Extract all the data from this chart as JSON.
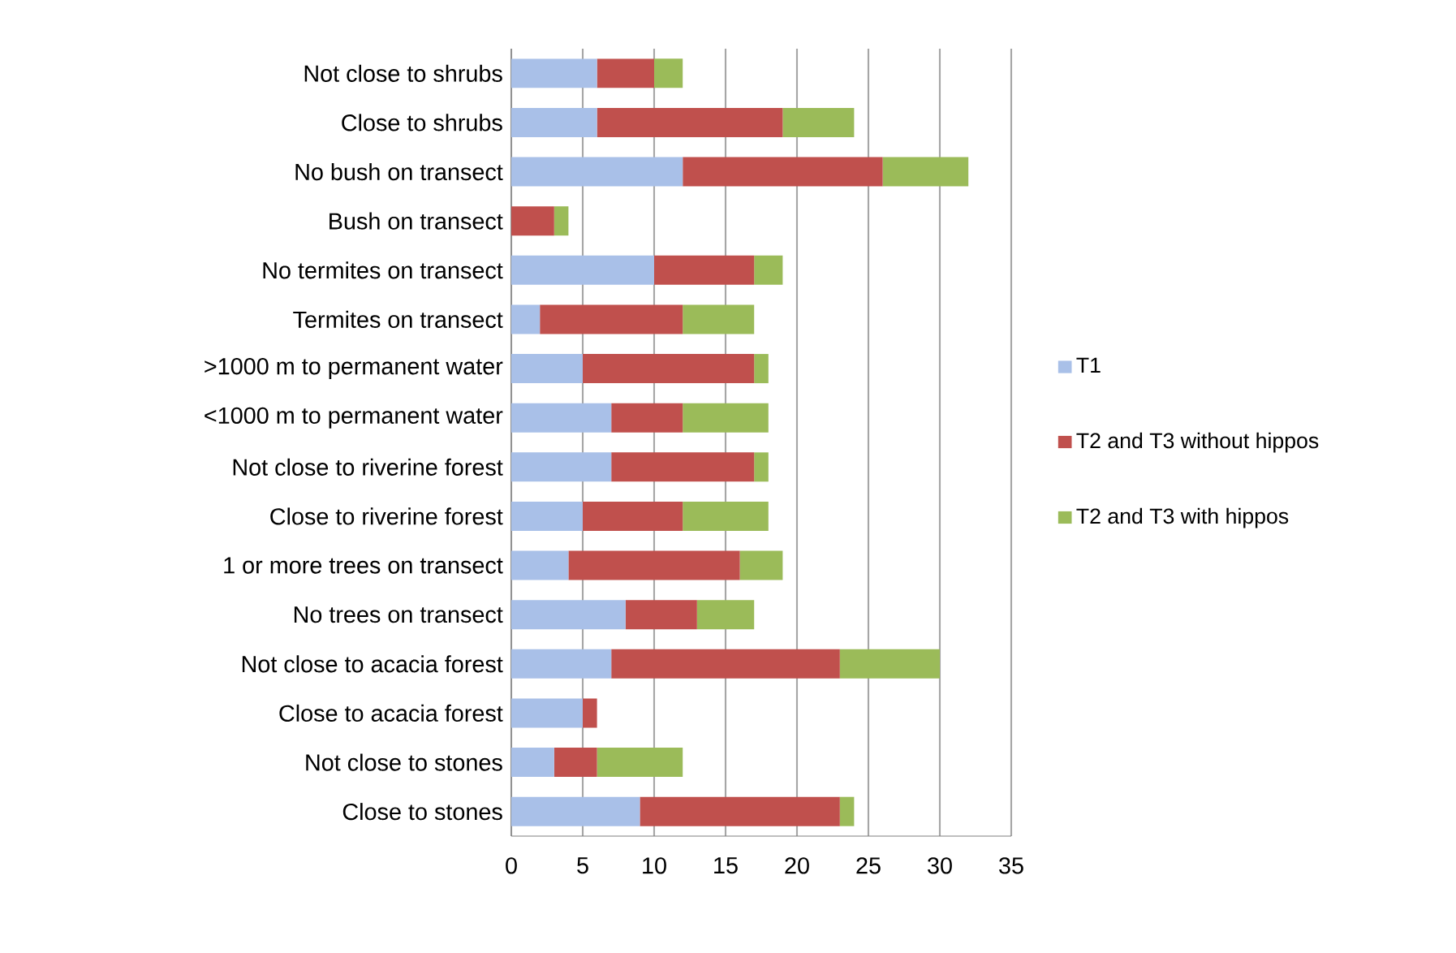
{
  "chart_data": {
    "type": "bar",
    "orientation": "horizontal",
    "stacked": true,
    "categories": [
      "Not close to shrubs",
      "Close to shrubs",
      "No bush on transect",
      "Bush on transect",
      "No termites on transect",
      "Termites on transect",
      ">1000 m to permanent water",
      "<1000 m to permanent water",
      "Not close to riverine forest",
      "Close to riverine forest",
      "1 or more trees on transect",
      "No trees on transect",
      "Not close to acacia forest",
      "Close to acacia forest",
      "Not close to stones",
      "Close to stones"
    ],
    "series": [
      {
        "name": "T1",
        "color": "#a9c0e8",
        "values": [
          6,
          6,
          12,
          0,
          10,
          2,
          5,
          7,
          7,
          5,
          4,
          8,
          7,
          5,
          3,
          9
        ]
      },
      {
        "name": "T2 and T3 without hippos",
        "color": "#c0504d",
        "values": [
          4,
          13,
          14,
          3,
          7,
          10,
          12,
          5,
          10,
          7,
          12,
          5,
          16,
          1,
          3,
          14
        ]
      },
      {
        "name": "T2 and T3 with hippos",
        "color": "#9bbb59",
        "values": [
          2,
          5,
          6,
          1,
          2,
          5,
          1,
          6,
          1,
          6,
          3,
          4,
          7,
          0,
          6,
          1
        ]
      }
    ],
    "xlim": [
      0,
      35
    ],
    "xticks": [
      0,
      5,
      10,
      15,
      20,
      25,
      30,
      35
    ],
    "grid": "x",
    "legend": "right"
  }
}
